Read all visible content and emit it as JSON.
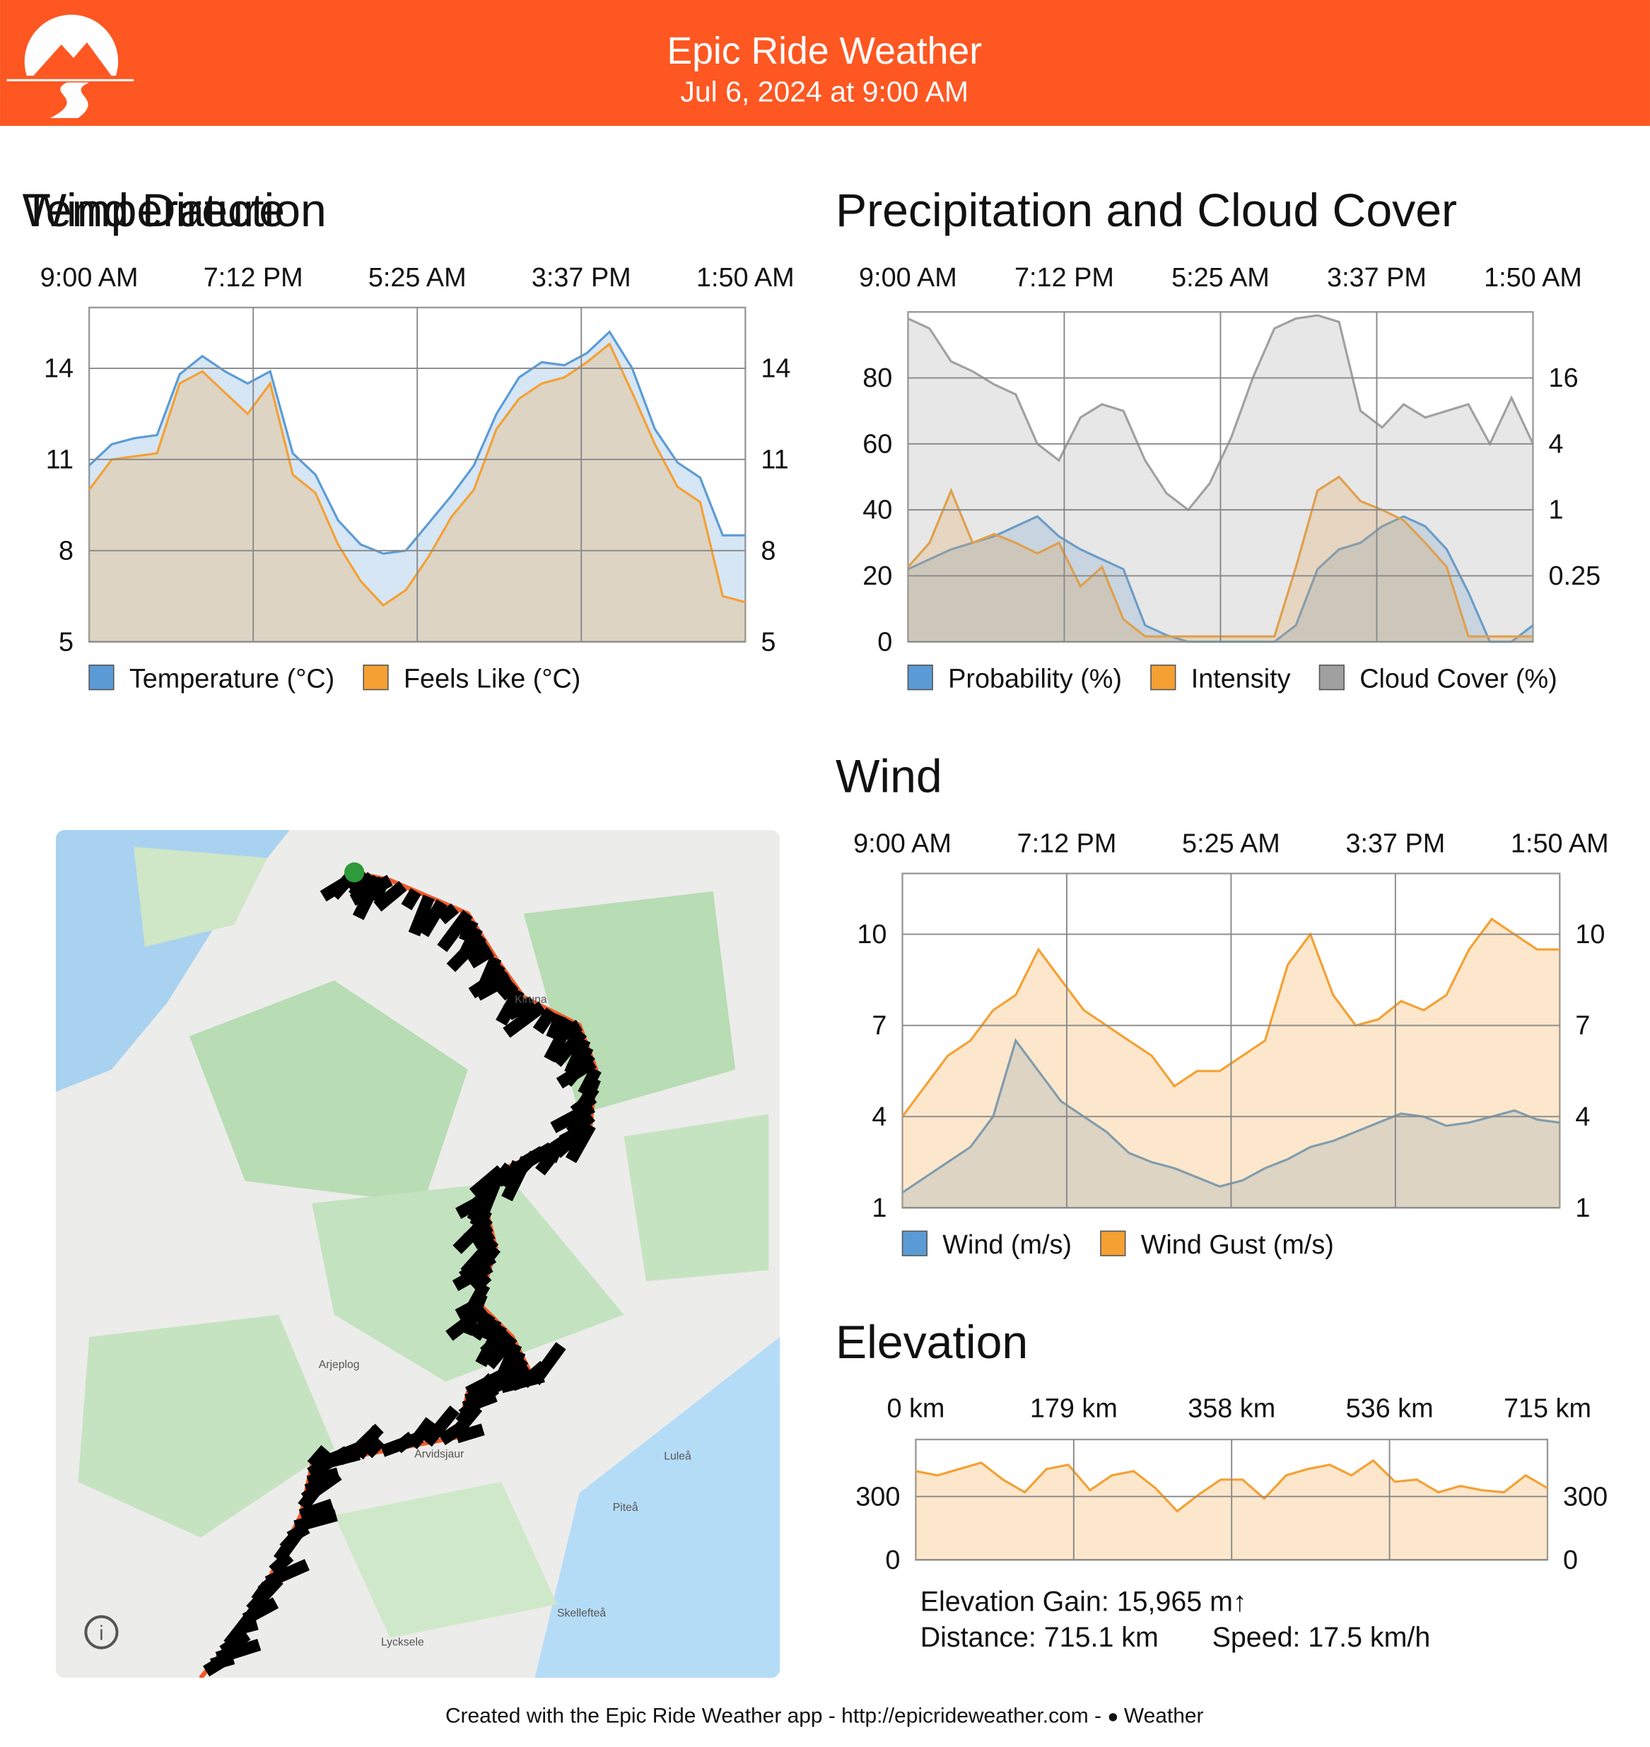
{
  "header": {
    "title": "Epic Ride Weather",
    "subtitle": "Jul 6, 2024 at 9:00 AM"
  },
  "chart_data": [
    {
      "type": "area",
      "title": "Temperature",
      "x_labels": [
        "9:00 AM",
        "7:12 PM",
        "5:25 AM",
        "3:37 PM",
        "1:50 AM"
      ],
      "ylim": [
        5,
        16
      ],
      "yticks": [
        5,
        8,
        11,
        14
      ],
      "grid": true,
      "series": [
        {
          "name": "Temperature (°C)",
          "color": "#5b9bd5",
          "values": [
            10.8,
            11.5,
            11.7,
            11.8,
            13.8,
            14.4,
            13.9,
            13.5,
            13.9,
            11.2,
            10.5,
            9.0,
            8.2,
            7.9,
            8.0,
            8.9,
            9.8,
            10.8,
            12.5,
            13.7,
            14.2,
            14.1,
            14.5,
            15.2,
            14.0,
            12.0,
            10.9,
            10.4,
            8.5,
            8.5
          ]
        },
        {
          "name": "Feels Like (°C)",
          "color": "#f5a033",
          "values": [
            10.0,
            11.0,
            11.1,
            11.2,
            13.5,
            13.9,
            13.2,
            12.5,
            13.5,
            10.5,
            9.9,
            8.2,
            7.0,
            6.2,
            6.7,
            7.8,
            9.1,
            10.0,
            12.0,
            13.0,
            13.5,
            13.7,
            14.2,
            14.8,
            13.2,
            11.5,
            10.1,
            9.6,
            6.5,
            6.3
          ]
        }
      ]
    },
    {
      "type": "area",
      "title": "Precipitation and Cloud Cover",
      "x_labels": [
        "9:00 AM",
        "7:12 PM",
        "5:25 AM",
        "3:37 PM",
        "1:50 AM"
      ],
      "ylim": [
        0,
        100
      ],
      "yticks": [
        0,
        20,
        40,
        60,
        80
      ],
      "grid": true,
      "y2lim": [
        0.0625,
        64
      ],
      "y2ticks": [
        0.25,
        1,
        4,
        16
      ],
      "y2log": true,
      "series": [
        {
          "name": "Probability (%)",
          "color": "#5b9bd5",
          "values": [
            22,
            25,
            28,
            30,
            32,
            35,
            38,
            32,
            28,
            25,
            22,
            5,
            2,
            0,
            0,
            0,
            0,
            0,
            5,
            22,
            28,
            30,
            35,
            38,
            35,
            28,
            15,
            0,
            0,
            5
          ]
        },
        {
          "name": "Intensity",
          "color": "#f5a033",
          "axis": "y2",
          "values": [
            0.3,
            0.5,
            1.5,
            0.5,
            0.6,
            0.5,
            0.4,
            0.5,
            0.2,
            0.3,
            0.1,
            0.07,
            0.07,
            0.07,
            0.07,
            0.07,
            0.07,
            0.07,
            0.3,
            1.5,
            2,
            1.2,
            1,
            0.8,
            0.5,
            0.3,
            0.07,
            0.07,
            0.07,
            0.07
          ]
        },
        {
          "name": "Cloud Cover (%)",
          "color": "#a0a0a0",
          "values": [
            98,
            95,
            85,
            82,
            78,
            75,
            60,
            55,
            68,
            72,
            70,
            55,
            45,
            40,
            48,
            62,
            80,
            95,
            98,
            99,
            97,
            70,
            65,
            72,
            68,
            70,
            72,
            60,
            74,
            60
          ]
        }
      ]
    },
    {
      "type": "area",
      "title": "Wind",
      "x_labels": [
        "9:00 AM",
        "7:12 PM",
        "5:25 AM",
        "3:37 PM",
        "1:50 AM"
      ],
      "ylim": [
        1,
        12
      ],
      "yticks": [
        1,
        4,
        7,
        10
      ],
      "grid": true,
      "series": [
        {
          "name": "Wind (m/s)",
          "color": "#5b9bd5",
          "values": [
            1.5,
            2,
            2.5,
            3,
            4,
            6.5,
            5.5,
            4.5,
            4,
            3.5,
            2.8,
            2.5,
            2.3,
            2,
            1.7,
            1.9,
            2.3,
            2.6,
            3,
            3.2,
            3.5,
            3.8,
            4.1,
            4,
            3.7,
            3.8,
            4,
            4.2,
            3.9,
            3.8
          ]
        },
        {
          "name": "Wind Gust (m/s)",
          "color": "#f5a033",
          "values": [
            4,
            5,
            6,
            6.5,
            7.5,
            8,
            9.5,
            8.5,
            7.5,
            7,
            6.5,
            6,
            5,
            5.5,
            5.5,
            6,
            6.5,
            9,
            10,
            8,
            7,
            7.2,
            7.8,
            7.5,
            8,
            9.5,
            10.5,
            10,
            9.5,
            9.5
          ]
        }
      ]
    },
    {
      "type": "area",
      "title": "Elevation",
      "x_labels": [
        "0 km",
        "179 km",
        "358 km",
        "536 km",
        "715 km"
      ],
      "ylim": [
        0,
        570
      ],
      "yticks": [
        0,
        300
      ],
      "grid": true,
      "series": [
        {
          "color": "#f5a033",
          "values": [
            420,
            400,
            430,
            460,
            380,
            320,
            430,
            450,
            330,
            400,
            420,
            340,
            230,
            310,
            380,
            380,
            290,
            400,
            430,
            450,
            400,
            470,
            370,
            380,
            320,
            350,
            330,
            320,
            400,
            340
          ]
        }
      ],
      "annotations": [
        "Elevation Gain: 15,965 m↑",
        "Distance: 715.1 km",
        "Speed: 17.5 km/h"
      ]
    }
  ],
  "map": {
    "title": "Wind Direction",
    "labels": [
      "Kiruna",
      "Arjeplog",
      "Arvidsjaur",
      "Luleå",
      "Piteå",
      "Skellefteå",
      "Lycksele"
    ]
  },
  "footer": {
    "text": "Created with the Epic Ride Weather app - http://epicrideweather.com - ",
    "brand": "Weather"
  }
}
